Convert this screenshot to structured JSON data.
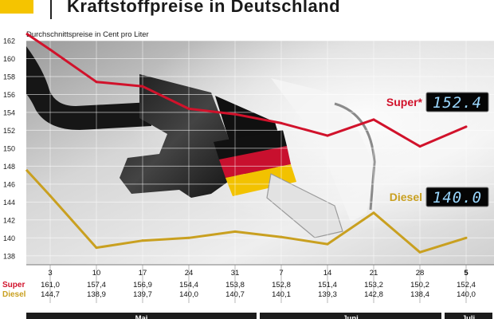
{
  "title": "Kraftstoffpreise in Deutschland",
  "chart_data": {
    "type": "line",
    "title": "Kraftstoffpreise in Deutschland",
    "ylabel": "Durchschnittspreise in Cent pro Liter",
    "ylim": [
      137,
      162
    ],
    "yticks": [
      138,
      140,
      142,
      144,
      146,
      148,
      150,
      152,
      154,
      156,
      158,
      160,
      162
    ],
    "categories": [
      "3",
      "10",
      "17",
      "24",
      "31",
      "7",
      "14",
      "21",
      "28",
      "5"
    ],
    "months": [
      {
        "label": "Mai",
        "from": 0,
        "to": 4
      },
      {
        "label": "Juni",
        "from": 5,
        "to": 8
      },
      {
        "label": "Juli",
        "from": 9,
        "to": 9
      }
    ],
    "series": [
      {
        "name": "Super",
        "legend_text": "Super*",
        "color": "#d1122b",
        "values": [
          161.0,
          157.4,
          156.9,
          154.4,
          153.8,
          152.8,
          151.4,
          153.2,
          150.2,
          152.4
        ],
        "labels": [
          "161,0",
          "157,4",
          "156,9",
          "154,4",
          "153,8",
          "152,8",
          "151,4",
          "153,2",
          "150,2",
          "152,4"
        ],
        "display": "152.4"
      },
      {
        "name": "Diesel",
        "legend_text": "Diesel",
        "color": "#c9a020",
        "values": [
          144.7,
          138.9,
          139.7,
          140.0,
          140.7,
          140.1,
          139.3,
          142.8,
          138.4,
          140.0
        ],
        "labels": [
          "144,7",
          "138,9",
          "139,7",
          "140,0",
          "140,7",
          "140,1",
          "139,3",
          "142,8",
          "138,4",
          "140,0"
        ],
        "display": "140.0"
      }
    ],
    "grid": true
  }
}
